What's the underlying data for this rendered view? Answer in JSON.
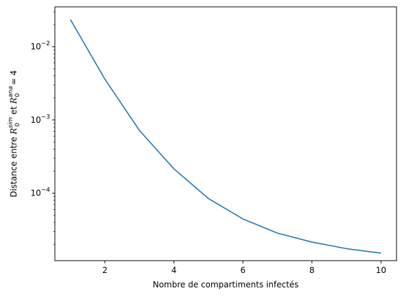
{
  "chart_data": {
    "type": "line",
    "title": "",
    "xlabel": "Nombre de compartiments infectés",
    "ylabel": {
      "prefix": "Distance entre ",
      "sym1": "R",
      "sup1": "sim",
      "sub1": "0",
      "mid": " et ",
      "sym2": "R",
      "sup2": "ana",
      "sub2": "0",
      "suffix": " = 4"
    },
    "x_scale": "linear",
    "y_scale": "log",
    "xlim": [
      0.55,
      10.45
    ],
    "ylim": [
      1.2e-05,
      0.035
    ],
    "grid": false,
    "xticks": [
      2,
      4,
      6,
      8,
      10
    ],
    "xtick_labels": [
      "2",
      "4",
      "6",
      "8",
      "10"
    ],
    "yticks": [
      {
        "value": 0.0001,
        "base": "10",
        "exp": "−4"
      },
      {
        "value": 0.001,
        "base": "10",
        "exp": "−3"
      },
      {
        "value": 0.01,
        "base": "10",
        "exp": "−2"
      }
    ],
    "series": [
      {
        "color": "#1f77b4",
        "x": [
          1,
          2,
          3,
          4,
          5,
          6,
          7,
          8,
          9,
          10
        ],
        "y": [
          0.0235,
          0.0036,
          0.00072,
          0.000215,
          8.45e-05,
          4.45e-05,
          2.85e-05,
          2.15e-05,
          1.75e-05,
          1.52e-05
        ]
      }
    ]
  }
}
